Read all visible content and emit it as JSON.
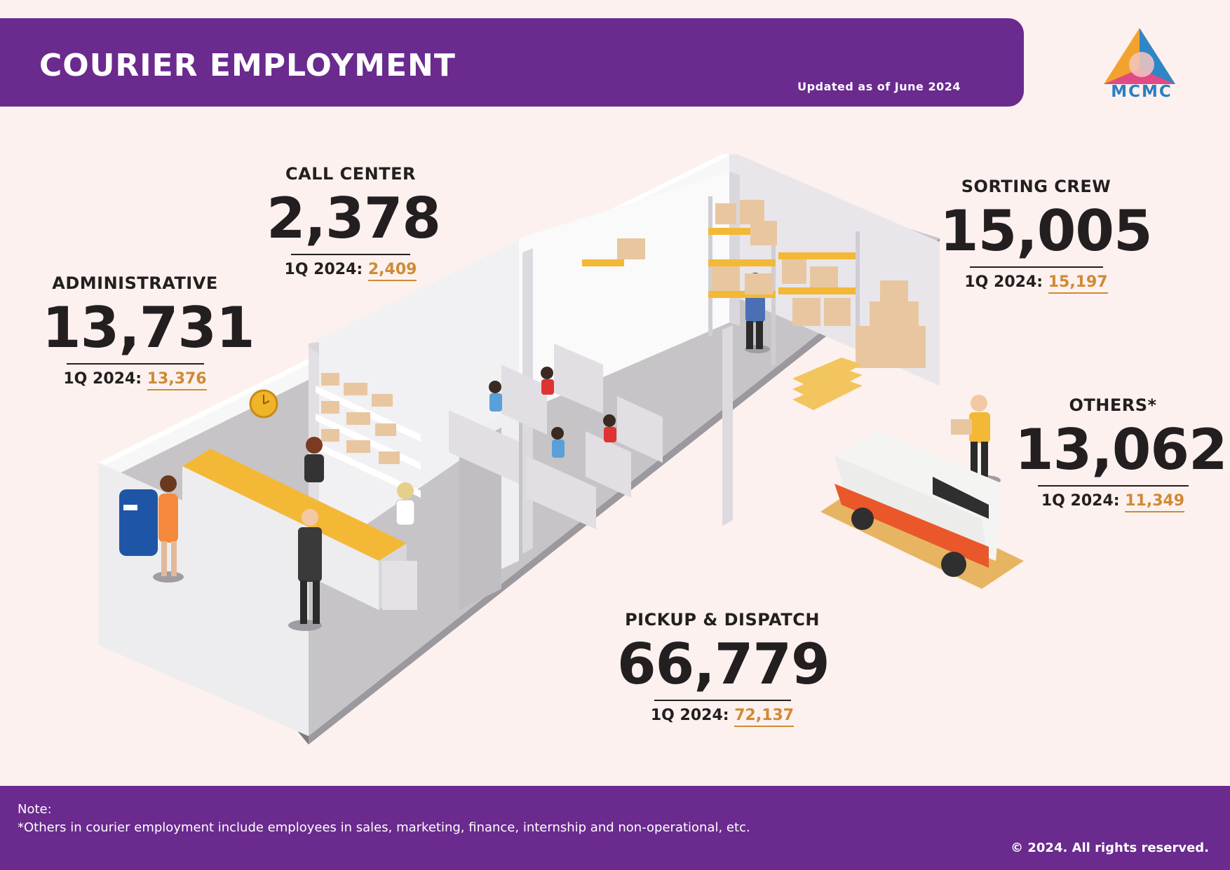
{
  "header": {
    "title": "COURIER EMPLOYMENT",
    "updated": "Updated as of June 2024",
    "logo_text": "MCMC"
  },
  "stats": {
    "call_center": {
      "label": "CALL CENTER",
      "value": "2,378",
      "prev_label": "1Q 2024: ",
      "prev_value": "2,409"
    },
    "administrative": {
      "label": "ADMINISTRATIVE",
      "value": "13,731",
      "prev_label": "1Q 2024: ",
      "prev_value": "13,376"
    },
    "sorting_crew": {
      "label": "SORTING CREW",
      "value": "15,005",
      "prev_label": "1Q 2024: ",
      "prev_value": "15,197"
    },
    "others": {
      "label": "OTHERS*",
      "value": "13,062",
      "prev_label": "1Q 2024: ",
      "prev_value": "11,349"
    },
    "pickup_dispatch": {
      "label": "PICKUP & DISPATCH",
      "value": "66,779",
      "prev_label": "1Q 2024: ",
      "prev_value": "72,137"
    }
  },
  "footer": {
    "note_title": "Note:",
    "note_text": "*Others in courier employment include employees in sales, marketing, finance, internship and non-operational, etc.",
    "copyright": "© 2024. All rights reserved."
  },
  "colors": {
    "brand_purple": "#6a2a8e",
    "accent_orange": "#cf8a35",
    "background": "#fcf1ee",
    "text_dark": "#231f20"
  }
}
